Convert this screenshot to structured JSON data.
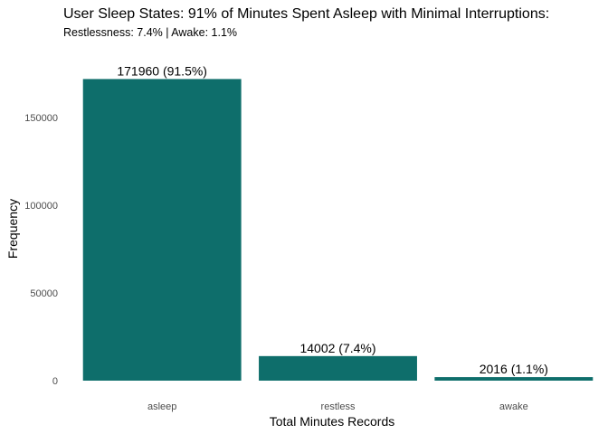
{
  "chart_data": {
    "type": "bar",
    "title": "User Sleep States: 91% of Minutes Spent Asleep with Minimal Interruptions:",
    "subtitle": "Restlessness: 7.4% | Awake: 1.1%",
    "xlabel": "Total Minutes Records",
    "ylabel": "Frequency",
    "categories": [
      "asleep",
      "restless",
      "awake"
    ],
    "values": [
      171960,
      14002,
      2016
    ],
    "bar_labels": [
      "171960 (91.5%)",
      "14002 (7.4%)",
      "2016 (1.1%)"
    ],
    "ylim": [
      0,
      180000
    ],
    "yticks": [
      0,
      50000,
      100000,
      150000
    ],
    "ytick_labels": [
      "0",
      "50000",
      "100000",
      "150000"
    ],
    "bar_color": "#0e6e6b",
    "grid": false,
    "legend": "none"
  }
}
